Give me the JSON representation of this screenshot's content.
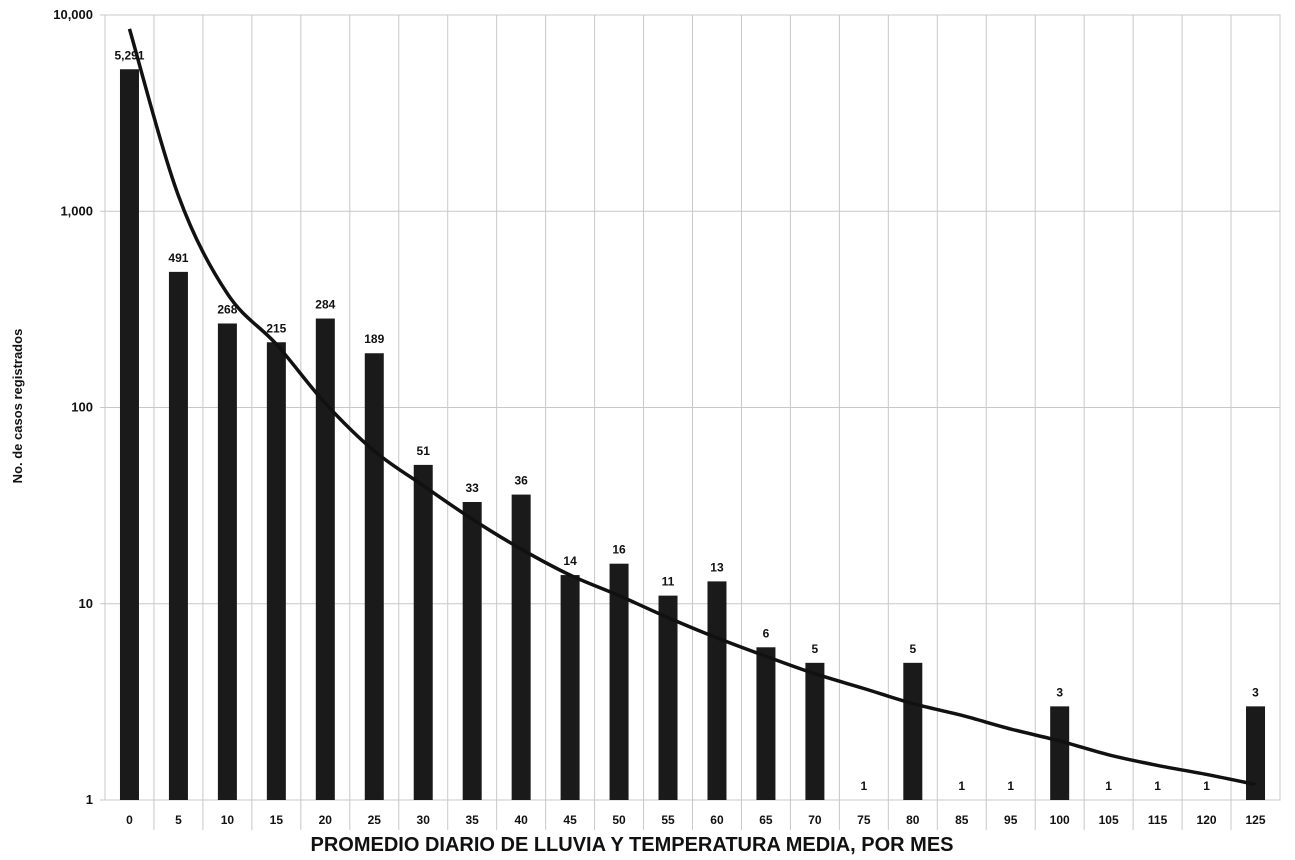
{
  "chart_data": {
    "type": "bar",
    "title": "",
    "xlabel": "PROMEDIO DIARIO DE LLUVIA Y TEMPERATURA MEDIA, POR MES",
    "ylabel": "No. de casos registrados",
    "yscale": "log",
    "ylim": [
      1,
      10000
    ],
    "y_tick_labels": [
      "1",
      "10",
      "100",
      "1,000",
      "10,000"
    ],
    "grid": true,
    "categories": [
      "0",
      "5",
      "10",
      "15",
      "20",
      "25",
      "30",
      "35",
      "40",
      "45",
      "50",
      "55",
      "60",
      "65",
      "70",
      "75",
      "80",
      "85",
      "95",
      "100",
      "105",
      "115",
      "120",
      "125"
    ],
    "values": [
      5291,
      491,
      268,
      215,
      284,
      189,
      51,
      33,
      36,
      14,
      16,
      11,
      13,
      6,
      5,
      1,
      5,
      1,
      1,
      3,
      1,
      1,
      1,
      3
    ],
    "data_labels": [
      "5,291",
      "491",
      "268",
      "215",
      "284",
      "189",
      "51",
      "33",
      "36",
      "14",
      "16",
      "11",
      "13",
      "6",
      "5",
      "1",
      "5",
      "1",
      "1",
      "3",
      "1",
      "1",
      "1",
      "3"
    ],
    "trendline": {
      "type": "decay-curve",
      "points": [
        [
          0,
          8500
        ],
        [
          5,
          1200
        ],
        [
          10,
          380
        ],
        [
          15,
          210
        ],
        [
          20,
          105
        ],
        [
          25,
          60
        ],
        [
          30,
          40
        ],
        [
          35,
          27
        ],
        [
          40,
          19
        ],
        [
          45,
          14
        ],
        [
          50,
          11
        ],
        [
          55,
          8.5
        ],
        [
          60,
          6.7
        ],
        [
          65,
          5.4
        ],
        [
          70,
          4.4
        ],
        [
          75,
          3.7
        ],
        [
          80,
          3.1
        ],
        [
          85,
          2.7
        ],
        [
          95,
          2.3
        ],
        [
          100,
          2.0
        ],
        [
          105,
          1.7
        ],
        [
          115,
          1.5
        ],
        [
          120,
          1.35
        ],
        [
          125,
          1.2
        ]
      ]
    },
    "colors": {
      "bar": "#1a1a1a",
      "trendline": "#111111",
      "grid": "#c8c8c8"
    }
  }
}
